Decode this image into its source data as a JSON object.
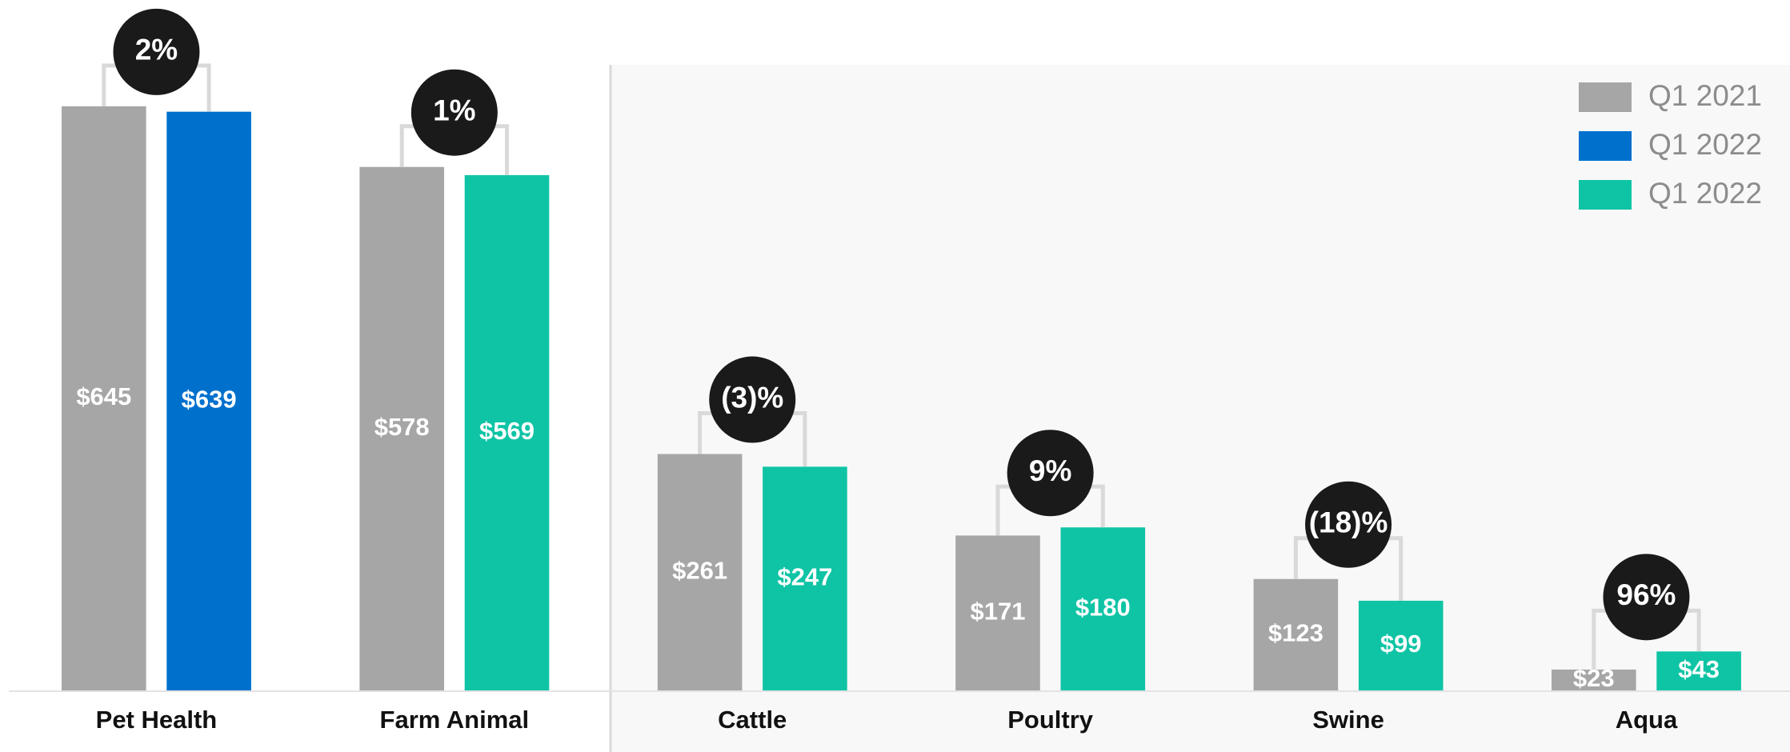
{
  "chart_data": {
    "type": "bar",
    "categories": [
      "Pet Health",
      "Farm Animal",
      "Cattle",
      "Poultry",
      "Swine",
      "Aqua"
    ],
    "series": [
      {
        "name": "Q1 2021",
        "color": "#a6a6a6",
        "values": [
          645,
          578,
          261,
          171,
          123,
          23
        ],
        "value_labels": [
          "$645",
          "$578",
          "$261",
          "$171",
          "$123",
          "$23"
        ]
      },
      {
        "name": "Q1 2022",
        "color": "#0070cd",
        "values": [
          639,
          null,
          null,
          null,
          null,
          null
        ],
        "value_labels": [
          "$639",
          null,
          null,
          null,
          null,
          null
        ]
      },
      {
        "name": "Q1 2022",
        "color": "#0ec4a5",
        "values": [
          null,
          569,
          247,
          180,
          99,
          43
        ],
        "value_labels": [
          null,
          "$569",
          "$247",
          "$180",
          "$99",
          "$43"
        ]
      }
    ],
    "changes": [
      "2%",
      "1%",
      "(3)%",
      "9%",
      "(18)%",
      "96%"
    ],
    "legend": "top-right"
  }
}
